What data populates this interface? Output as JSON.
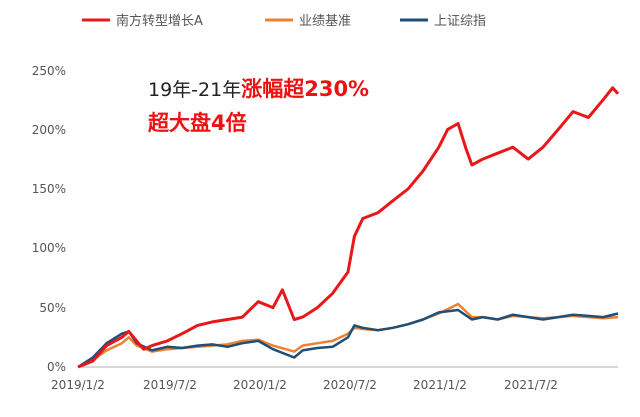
{
  "colors": {
    "fund": "#e8181a",
    "benchmark": "#ee8030",
    "index": "#1f4e79",
    "axis": "#b0b0b0",
    "annotation_black": "#222222",
    "annotation_red": "#ee1111"
  },
  "chart_data": {
    "type": "line",
    "title": "",
    "xlabel": "",
    "ylabel": "",
    "grid": false,
    "legend_position": "top",
    "x_ticks": [
      "2019/1/2",
      "2019/7/2",
      "2020/1/2",
      "2020/7/2",
      "2021/1/2",
      "2021/7/2"
    ],
    "y_ticks": [
      "0%",
      "50%",
      "100%",
      "150%",
      "200%",
      "250%"
    ],
    "y_tick_values": [
      0,
      50,
      100,
      150,
      200,
      250
    ],
    "ylim": [
      0,
      250
    ],
    "xlim": [
      "2019-01-02",
      "2021-12-31"
    ],
    "series": [
      {
        "name": "南方转型增长A",
        "color": "#e8181a",
        "x": [
          "2019-01-02",
          "2019-02-01",
          "2019-03-01",
          "2019-04-01",
          "2019-04-15",
          "2019-05-01",
          "2019-05-15",
          "2019-06-01",
          "2019-07-02",
          "2019-08-01",
          "2019-09-01",
          "2019-10-01",
          "2019-11-01",
          "2019-12-01",
          "2020-01-02",
          "2020-02-01",
          "2020-02-20",
          "2020-03-15",
          "2020-04-01",
          "2020-05-01",
          "2020-06-01",
          "2020-07-02",
          "2020-07-15",
          "2020-08-01",
          "2020-09-01",
          "2020-10-01",
          "2020-11-01",
          "2020-12-01",
          "2021-01-02",
          "2021-01-20",
          "2021-02-10",
          "2021-02-25",
          "2021-03-10",
          "2021-04-01",
          "2021-05-01",
          "2021-06-01",
          "2021-07-02",
          "2021-08-01",
          "2021-09-01",
          "2021-10-01",
          "2021-11-01",
          "2021-12-01",
          "2021-12-20",
          "2021-12-31"
        ],
        "y": [
          0,
          5,
          18,
          25,
          30,
          22,
          15,
          18,
          22,
          28,
          35,
          38,
          40,
          42,
          55,
          50,
          65,
          40,
          42,
          50,
          62,
          80,
          110,
          125,
          130,
          140,
          150,
          165,
          185,
          200,
          205,
          185,
          170,
          175,
          180,
          185,
          175,
          185,
          200,
          215,
          210,
          225,
          235,
          230
        ]
      },
      {
        "name": "业绩基准",
        "color": "#ee8030",
        "x": [
          "2019-01-02",
          "2019-02-01",
          "2019-03-01",
          "2019-04-01",
          "2019-04-15",
          "2019-05-01",
          "2019-06-01",
          "2019-07-02",
          "2019-08-01",
          "2019-09-01",
          "2019-10-01",
          "2019-11-01",
          "2019-12-01",
          "2020-01-02",
          "2020-02-01",
          "2020-03-15",
          "2020-04-01",
          "2020-05-01",
          "2020-06-01",
          "2020-07-02",
          "2020-07-15",
          "2020-08-01",
          "2020-09-01",
          "2020-10-01",
          "2020-11-01",
          "2020-12-01",
          "2021-01-02",
          "2021-02-10",
          "2021-03-10",
          "2021-04-01",
          "2021-05-01",
          "2021-06-01",
          "2021-07-02",
          "2021-08-01",
          "2021-09-01",
          "2021-10-01",
          "2021-11-01",
          "2021-12-01",
          "2021-12-31"
        ],
        "y": [
          0,
          6,
          14,
          20,
          25,
          18,
          13,
          15,
          16,
          17,
          18,
          19,
          22,
          23,
          18,
          13,
          18,
          20,
          22,
          28,
          33,
          32,
          31,
          33,
          36,
          40,
          45,
          53,
          42,
          42,
          40,
          43,
          42,
          41,
          42,
          43,
          42,
          41,
          42
        ]
      },
      {
        "name": "上证综指",
        "color": "#1f4e79",
        "x": [
          "2019-01-02",
          "2019-02-01",
          "2019-03-01",
          "2019-04-01",
          "2019-04-15",
          "2019-05-01",
          "2019-06-01",
          "2019-07-02",
          "2019-08-01",
          "2019-09-01",
          "2019-10-01",
          "2019-11-01",
          "2019-12-01",
          "2020-01-02",
          "2020-02-01",
          "2020-03-15",
          "2020-04-01",
          "2020-05-01",
          "2020-06-01",
          "2020-07-02",
          "2020-07-15",
          "2020-08-01",
          "2020-09-01",
          "2020-10-01",
          "2020-11-01",
          "2020-12-01",
          "2021-01-02",
          "2021-02-10",
          "2021-03-10",
          "2021-04-01",
          "2021-05-01",
          "2021-06-01",
          "2021-07-02",
          "2021-08-01",
          "2021-09-01",
          "2021-10-01",
          "2021-11-01",
          "2021-12-01",
          "2021-12-31"
        ],
        "y": [
          0,
          8,
          20,
          28,
          30,
          20,
          14,
          17,
          16,
          18,
          19,
          17,
          20,
          22,
          15,
          8,
          14,
          16,
          17,
          25,
          35,
          33,
          31,
          33,
          36,
          40,
          46,
          48,
          40,
          42,
          40,
          44,
          42,
          40,
          42,
          44,
          43,
          42,
          45
        ]
      }
    ]
  },
  "annotation": {
    "line1_prefix": "19年-21年",
    "line1_highlight": "涨幅超230%",
    "line2_highlight": "超大盘4倍"
  }
}
